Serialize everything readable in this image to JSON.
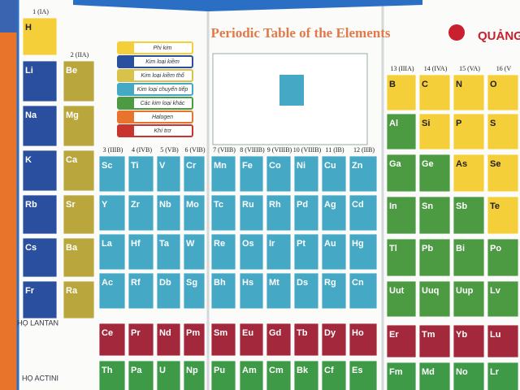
{
  "header": {
    "title": "Periodic Table of the Elements",
    "brand": "QUẢNG"
  },
  "groups": [
    "1 (IA)",
    "2 (IIA)",
    "3 (IIIB)",
    "4 (IVB)",
    "5 (VB)",
    "6 (VIB)",
    "7 (VIIB)",
    "8 (VIIIB)",
    "9 (VIIIB)",
    "10 (VIIIB)",
    "11 (IB)",
    "12 (IIB)",
    "13 (IIIA)",
    "14 (IVA)",
    "15 (VA)",
    "16 (V"
  ],
  "legend": [
    {
      "label": "Phi kim",
      "color": "#f5cf3a"
    },
    {
      "label": "Kim loại kiềm",
      "color": "#2a4f9e"
    },
    {
      "label": "Kim loại kiềm thổ",
      "color": "#d8c24a"
    },
    {
      "label": "Kim loại chuyển tiếp",
      "color": "#45a9c6"
    },
    {
      "label": "Các kim loại khác",
      "color": "#4c9a42"
    },
    {
      "label": "Halogen",
      "color": "#e8732e"
    },
    {
      "label": "Khí trơ",
      "color": "#c8352f"
    }
  ],
  "series_labels": {
    "lanthanides": "HỌ LANTAN",
    "actinides": "HỌ ACTINI"
  },
  "table": {
    "rows": [
      [
        {
          "symbol": "H",
          "color": "#f5cf3a"
        },
        null,
        null,
        null,
        null,
        null,
        null,
        null,
        null,
        null,
        null,
        null,
        null,
        null,
        null,
        null
      ],
      [
        {
          "symbol": "Li",
          "color": "#2a4f9e"
        },
        {
          "symbol": "Be",
          "color": "#b9a63c"
        },
        null,
        null,
        null,
        null,
        null,
        null,
        null,
        null,
        null,
        null,
        {
          "symbol": "B",
          "color": "#f5cf3a"
        },
        {
          "symbol": "C",
          "color": "#f5cf3a"
        },
        {
          "symbol": "N",
          "color": "#f5cf3a"
        },
        {
          "symbol": "O",
          "color": "#f5cf3a"
        }
      ],
      [
        {
          "symbol": "Na",
          "color": "#2a4f9e"
        },
        {
          "symbol": "Mg",
          "color": "#b9a63c"
        },
        null,
        null,
        null,
        null,
        null,
        null,
        null,
        null,
        null,
        null,
        {
          "symbol": "Al",
          "color": "#4c9a42"
        },
        {
          "symbol": "Si",
          "color": "#f5cf3a"
        },
        {
          "symbol": "P",
          "color": "#f5cf3a"
        },
        {
          "symbol": "S",
          "color": "#f5cf3a"
        }
      ],
      [
        {
          "symbol": "K",
          "color": "#2a4f9e"
        },
        {
          "symbol": "Ca",
          "color": "#b9a63c"
        },
        {
          "symbol": "Sc",
          "color": "#45a9c6"
        },
        {
          "symbol": "Ti",
          "color": "#45a9c6"
        },
        {
          "symbol": "V",
          "color": "#45a9c6"
        },
        {
          "symbol": "Cr",
          "color": "#45a9c6"
        },
        {
          "symbol": "Mn",
          "color": "#45a9c6"
        },
        {
          "symbol": "Fe",
          "color": "#45a9c6"
        },
        {
          "symbol": "Co",
          "color": "#45a9c6"
        },
        {
          "symbol": "Ni",
          "color": "#45a9c6"
        },
        {
          "symbol": "Cu",
          "color": "#45a9c6"
        },
        {
          "symbol": "Zn",
          "color": "#45a9c6"
        },
        {
          "symbol": "Ga",
          "color": "#4c9a42"
        },
        {
          "symbol": "Ge",
          "color": "#4c9a42"
        },
        {
          "symbol": "As",
          "color": "#f5cf3a"
        },
        {
          "symbol": "Se",
          "color": "#f5cf3a"
        }
      ],
      [
        {
          "symbol": "Rb",
          "color": "#2a4f9e"
        },
        {
          "symbol": "Sr",
          "color": "#b9a63c"
        },
        {
          "symbol": "Y",
          "color": "#45a9c6"
        },
        {
          "symbol": "Zr",
          "color": "#45a9c6"
        },
        {
          "symbol": "Nb",
          "color": "#45a9c6"
        },
        {
          "symbol": "Mo",
          "color": "#45a9c6"
        },
        {
          "symbol": "Tc",
          "color": "#45a9c6"
        },
        {
          "symbol": "Ru",
          "color": "#45a9c6"
        },
        {
          "symbol": "Rh",
          "color": "#45a9c6"
        },
        {
          "symbol": "Pd",
          "color": "#45a9c6"
        },
        {
          "symbol": "Ag",
          "color": "#45a9c6"
        },
        {
          "symbol": "Cd",
          "color": "#45a9c6"
        },
        {
          "symbol": "In",
          "color": "#4c9a42"
        },
        {
          "symbol": "Sn",
          "color": "#4c9a42"
        },
        {
          "symbol": "Sb",
          "color": "#4c9a42"
        },
        {
          "symbol": "Te",
          "color": "#f5cf3a"
        }
      ],
      [
        {
          "symbol": "Cs",
          "color": "#2a4f9e"
        },
        {
          "symbol": "Ba",
          "color": "#b9a63c"
        },
        {
          "symbol": "La",
          "color": "#45a9c6"
        },
        {
          "symbol": "Hf",
          "color": "#45a9c6"
        },
        {
          "symbol": "Ta",
          "color": "#45a9c6"
        },
        {
          "symbol": "W",
          "color": "#45a9c6"
        },
        {
          "symbol": "Re",
          "color": "#45a9c6"
        },
        {
          "symbol": "Os",
          "color": "#45a9c6"
        },
        {
          "symbol": "Ir",
          "color": "#45a9c6"
        },
        {
          "symbol": "Pt",
          "color": "#45a9c6"
        },
        {
          "symbol": "Au",
          "color": "#45a9c6"
        },
        {
          "symbol": "Hg",
          "color": "#45a9c6"
        },
        {
          "symbol": "Tl",
          "color": "#4c9a42"
        },
        {
          "symbol": "Pb",
          "color": "#4c9a42"
        },
        {
          "symbol": "Bi",
          "color": "#4c9a42"
        },
        {
          "symbol": "Po",
          "color": "#4c9a42"
        }
      ],
      [
        {
          "symbol": "Fr",
          "color": "#2a4f9e"
        },
        {
          "symbol": "Ra",
          "color": "#b9a63c"
        },
        {
          "symbol": "Ac",
          "color": "#45a9c6"
        },
        {
          "symbol": "Rf",
          "color": "#45a9c6"
        },
        {
          "symbol": "Db",
          "color": "#45a9c6"
        },
        {
          "symbol": "Sg",
          "color": "#45a9c6"
        },
        {
          "symbol": "Bh",
          "color": "#45a9c6"
        },
        {
          "symbol": "Hs",
          "color": "#45a9c6"
        },
        {
          "symbol": "Mt",
          "color": "#45a9c6"
        },
        {
          "symbol": "Ds",
          "color": "#45a9c6"
        },
        {
          "symbol": "Rg",
          "color": "#45a9c6"
        },
        {
          "symbol": "Cn",
          "color": "#45a9c6"
        },
        {
          "symbol": "Uut",
          "color": "#4c9a42"
        },
        {
          "symbol": "Uuq",
          "color": "#4c9a42"
        },
        {
          "symbol": "Uup",
          "color": "#4c9a42"
        },
        {
          "symbol": "Lv",
          "color": "#4c9a42"
        }
      ],
      [
        null,
        null,
        {
          "symbol": "Ce",
          "color": "#a3283c"
        },
        {
          "symbol": "Pr",
          "color": "#a3283c"
        },
        {
          "symbol": "Nd",
          "color": "#a3283c"
        },
        {
          "symbol": "Pm",
          "color": "#a3283c"
        },
        {
          "symbol": "Sm",
          "color": "#a3283c"
        },
        {
          "symbol": "Eu",
          "color": "#a3283c"
        },
        {
          "symbol": "Gd",
          "color": "#a3283c"
        },
        {
          "symbol": "Tb",
          "color": "#a3283c"
        },
        {
          "symbol": "Dy",
          "color": "#a3283c"
        },
        {
          "symbol": "Ho",
          "color": "#a3283c"
        },
        {
          "symbol": "Er",
          "color": "#a3283c"
        },
        {
          "symbol": "Tm",
          "color": "#a3283c"
        },
        {
          "symbol": "Yb",
          "color": "#a3283c"
        },
        {
          "symbol": "Lu",
          "color": "#a3283c"
        }
      ],
      [
        null,
        null,
        {
          "symbol": "Th",
          "color": "#3f9a48"
        },
        {
          "symbol": "Pa",
          "color": "#3f9a48"
        },
        {
          "symbol": "U",
          "color": "#3f9a48"
        },
        {
          "symbol": "Np",
          "color": "#3f9a48"
        },
        {
          "symbol": "Pu",
          "color": "#3f9a48"
        },
        {
          "symbol": "Am",
          "color": "#3f9a48"
        },
        {
          "symbol": "Cm",
          "color": "#3f9a48"
        },
        {
          "symbol": "Bk",
          "color": "#3f9a48"
        },
        {
          "symbol": "Cf",
          "color": "#3f9a48"
        },
        {
          "symbol": "Es",
          "color": "#3f9a48"
        },
        {
          "symbol": "Fm",
          "color": "#3f9a48"
        },
        {
          "symbol": "Md",
          "color": "#3f9a48"
        },
        {
          "symbol": "No",
          "color": "#3f9a48"
        },
        {
          "symbol": "Lr",
          "color": "#3f9a48"
        }
      ]
    ]
  }
}
